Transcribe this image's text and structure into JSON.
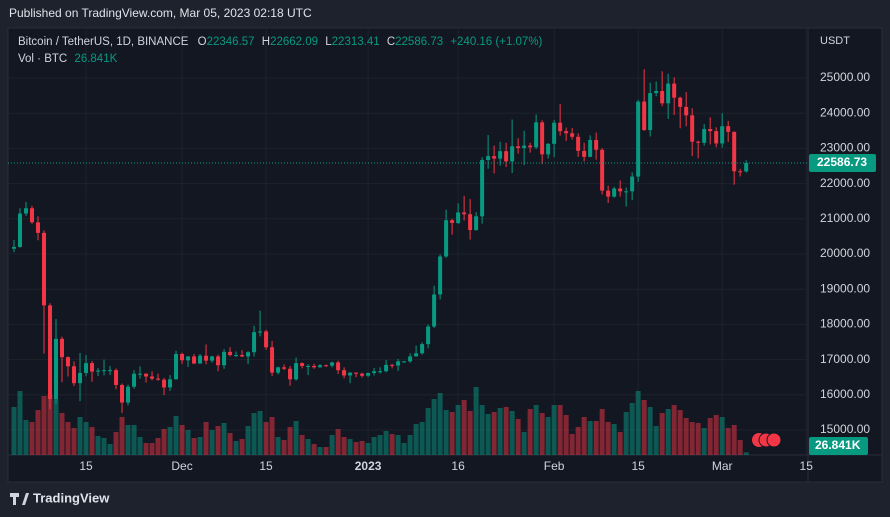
{
  "published": "Published on TradingView.com, Mar 05, 2023 02:18 UTC",
  "footer": "TradingView",
  "chart_data": {
    "type": "candlestick",
    "title": "Bitcoin / TetherUS, 1D, BINANCE",
    "open_label": "O",
    "high_label": "H",
    "low_label": "L",
    "close_label": "C",
    "change_label": "+240.16 (+1.07%)",
    "volume_title": "Vol · BTC",
    "volume_last_label": "26.841K",
    "y_axis_label": "USDT",
    "up_color": "#089981",
    "down_color": "#f23645",
    "grid": true,
    "open": [
      20150,
      20200,
      21150,
      21300,
      20900,
      20600,
      18540,
      15880,
      17590,
      17070,
      16810,
      16330,
      16620,
      16900,
      16660,
      16690,
      16700,
      16700,
      16280,
      15780,
      16230,
      16600,
      16600,
      16520,
      16460,
      16430,
      16210,
      16440,
      17160,
      16980,
      17090,
      16890,
      17110,
      16970,
      17090,
      16840,
      17220,
      17130,
      17130,
      17090,
      17210,
      17780,
      17800,
      17350,
      16630,
      16780,
      16740,
      16440,
      16900,
      16820,
      16820,
      16780,
      16840,
      16830,
      16920,
      16700,
      16550,
      16630,
      16600,
      16540,
      16620,
      16670,
      16670,
      16850,
      16830,
      16950,
      16950,
      17090,
      17180,
      17440,
      17940,
      18850,
      19930,
      20960,
      20880,
      21180,
      21130,
      20680,
      21070,
      22670,
      22780,
      22710,
      22920,
      22630,
      23060,
      23010,
      23080,
      23030,
      23740,
      22830,
      23130,
      23730,
      23490,
      23430,
      23330,
      22930,
      22760,
      23240,
      22960,
      21800,
      21630,
      21860,
      21780,
      21780,
      22200,
      24330,
      23520,
      24570,
      24630,
      24280,
      24840,
      24440,
      24180,
      23940,
      23190,
      23160,
      23550,
      23490,
      23140,
      23630,
      23470,
      22350,
      22346.57
    ],
    "high": [
      20400,
      21300,
      21480,
      21370,
      21070,
      20670,
      18600,
      18150,
      17650,
      17090,
      16950,
      17190,
      17130,
      16960,
      16760,
      17000,
      16820,
      16750,
      16320,
      16290,
      16700,
      16810,
      16610,
      16670,
      16600,
      16480,
      16560,
      17250,
      17200,
      17100,
      17160,
      17160,
      17430,
      17110,
      17140,
      17300,
      17350,
      17230,
      17270,
      17240,
      17960,
      18390,
      17850,
      17530,
      16800,
      16860,
      16820,
      17060,
      16920,
      16870,
      16880,
      16870,
      16860,
      16940,
      16970,
      16780,
      16640,
      16640,
      16630,
      16630,
      16760,
      16780,
      16990,
      16880,
      17020,
      16960,
      17180,
      17400,
      17490,
      18000,
      19100,
      19990,
      21260,
      21000,
      21440,
      21650,
      21560,
      21190,
      22750,
      23380,
      23080,
      23190,
      23160,
      23820,
      23290,
      23500,
      23160,
      23960,
      23800,
      23150,
      23810,
      24260,
      23590,
      23580,
      23430,
      23160,
      23370,
      23450,
      23010,
      21940,
      21910,
      22090,
      21890,
      22320,
      24380,
      25250,
      24870,
      24900,
      25190,
      25120,
      25020,
      24470,
      24600,
      24140,
      23220,
      23690,
      23880,
      23600,
      24000,
      23780,
      23480,
      22420,
      22662.09
    ],
    "low": [
      20050,
      20180,
      21080,
      20860,
      20390,
      17170,
      15590,
      15750,
      16360,
      16520,
      16250,
      15820,
      16530,
      16370,
      16530,
      16550,
      16560,
      16160,
      15480,
      15700,
      16170,
      16460,
      16350,
      16410,
      16400,
      15990,
      16110,
      16430,
      16870,
      16790,
      16870,
      16880,
      16870,
      16910,
      16670,
      16740,
      17090,
      17070,
      17070,
      16870,
      17090,
      17660,
      17280,
      16530,
      16580,
      16700,
      16260,
      16400,
      16750,
      16560,
      16740,
      16780,
      16790,
      16780,
      16590,
      16470,
      16330,
      16500,
      16490,
      16500,
      16550,
      16600,
      16640,
      16750,
      16680,
      16910,
      16910,
      17090,
      17140,
      17320,
      17900,
      18710,
      19890,
      20550,
      20850,
      20950,
      20410,
      20660,
      20860,
      22420,
      22290,
      22510,
      22470,
      22300,
      22850,
      22530,
      22880,
      22980,
      22550,
      22710,
      22750,
      23360,
      23210,
      23250,
      22760,
      22630,
      22750,
      22680,
      21690,
      21450,
      21600,
      21630,
      21350,
      21530,
      22050,
      23500,
      23340,
      24480,
      24200,
      23840,
      23950,
      23570,
      23630,
      22780,
      22720,
      23080,
      23110,
      23030,
      23020,
      23180,
      21970,
      22200,
      22313.41
    ],
    "close": [
      20200,
      21150,
      21300,
      20900,
      20600,
      18540,
      15880,
      17590,
      17070,
      16810,
      16330,
      16620,
      16900,
      16660,
      16690,
      16700,
      16700,
      16280,
      15780,
      16230,
      16600,
      16600,
      16520,
      16460,
      16430,
      16210,
      16440,
      17160,
      16980,
      17090,
      16890,
      17110,
      16970,
      17090,
      16840,
      17220,
      17130,
      17130,
      17090,
      17210,
      17780,
      17800,
      17350,
      16630,
      16780,
      16740,
      16440,
      16900,
      16820,
      16820,
      16780,
      16840,
      16830,
      16920,
      16700,
      16550,
      16630,
      16600,
      16540,
      16620,
      16670,
      16670,
      16850,
      16830,
      16950,
      16950,
      17090,
      17180,
      17440,
      17940,
      18850,
      19930,
      20960,
      20880,
      21180,
      21130,
      20680,
      21070,
      22670,
      22780,
      22710,
      22920,
      22630,
      23060,
      23010,
      23080,
      23030,
      23740,
      22830,
      23130,
      23730,
      23490,
      23430,
      23330,
      22930,
      22760,
      23240,
      22960,
      21800,
      21630,
      21860,
      21780,
      21780,
      22200,
      24330,
      23520,
      24570,
      24630,
      24280,
      24840,
      24440,
      24180,
      23940,
      23190,
      23160,
      23550,
      23490,
      23140,
      23630,
      23470,
      22350,
      22346.57,
      22586.73
    ],
    "volume": [
      480,
      640,
      350,
      330,
      450,
      590,
      600,
      560,
      420,
      330,
      270,
      380,
      330,
      280,
      190,
      170,
      110,
      230,
      380,
      300,
      300,
      180,
      120,
      120,
      170,
      260,
      280,
      390,
      300,
      250,
      170,
      180,
      330,
      250,
      290,
      320,
      220,
      140,
      160,
      290,
      420,
      440,
      330,
      380,
      180,
      150,
      280,
      340,
      200,
      160,
      110,
      80,
      80,
      200,
      260,
      180,
      160,
      130,
      140,
      120,
      180,
      200,
      240,
      210,
      200,
      120,
      200,
      310,
      330,
      470,
      560,
      620,
      450,
      430,
      500,
      550,
      440,
      680,
      500,
      410,
      430,
      470,
      480,
      440,
      360,
      230,
      460,
      500,
      420,
      380,
      500,
      500,
      400,
      210,
      280,
      380,
      340,
      340,
      460,
      330,
      310,
      230,
      430,
      520,
      640,
      550,
      480,
      290,
      420,
      460,
      500,
      450,
      370,
      330,
      320,
      270,
      370,
      400,
      380,
      270,
      300,
      150,
      26.841
    ],
    "xlim": [
      -1,
      132.3
    ],
    "xticks": [
      {
        "value": 12,
        "label": "15"
      },
      {
        "value": 28,
        "label": "Dec"
      },
      {
        "value": 42,
        "label": "15"
      },
      {
        "value": 59,
        "label": "2023"
      },
      {
        "value": 74,
        "label": "16"
      },
      {
        "value": 90,
        "label": "Feb"
      },
      {
        "value": 104,
        "label": "15"
      },
      {
        "value": 118,
        "label": "Mar"
      },
      {
        "value": 132,
        "label": "15"
      }
    ],
    "ylim": [
      14290,
      26420
    ],
    "yticks": [
      {
        "value": 15000,
        "label": "15000.00"
      },
      {
        "value": 16000,
        "label": "16000.00"
      },
      {
        "value": 17000,
        "label": "17000.00"
      },
      {
        "value": 18000,
        "label": "18000.00"
      },
      {
        "value": 19000,
        "label": "19000.00"
      },
      {
        "value": 20000,
        "label": "20000.00"
      },
      {
        "value": 21000,
        "label": "21000.00"
      },
      {
        "value": 22000,
        "label": "22000.00"
      },
      {
        "value": 23000,
        "label": "23000.00"
      },
      {
        "value": 24000,
        "label": "24000.00"
      },
      {
        "value": 25000,
        "label": "25000.00"
      }
    ],
    "volume_ylim": [
      0,
      1100
    ]
  }
}
